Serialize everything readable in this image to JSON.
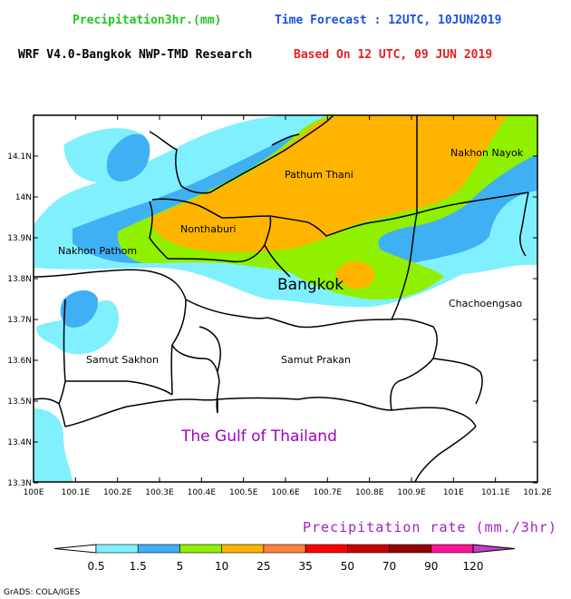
{
  "header": {
    "variable": "Precipitation3hr.(mm)",
    "forecast": "Time Forecast : 12UTC, 10JUN2019",
    "model": "WRF V4.0-Bangkok NWP-TMD Research",
    "based_on": "Based On 12 UTC, 09 JUN 2019"
  },
  "colors": {
    "variable": "#22c722",
    "forecast": "#1a52e6",
    "model": "#000000",
    "based_on": "#e61e1e",
    "legend_title": "#a020c8",
    "gulf_label": "#a000c0"
  },
  "map": {
    "x_ticks": [
      "100E",
      "100.1E",
      "100.2E",
      "100.3E",
      "100.4E",
      "100.5E",
      "100.6E",
      "100.7E",
      "100.8E",
      "100.9E",
      "101E",
      "101.1E",
      "101.2E"
    ],
    "y_ticks": [
      "14.1N",
      "14N",
      "13.9N",
      "13.8N",
      "13.7N",
      "13.6N",
      "13.5N",
      "13.4N",
      "13.3N"
    ],
    "provinces": {
      "pathum_thani": "Pathum Thani",
      "nakhon_nayok": "Nakhon Nayok",
      "nonthaburi": "Nonthaburi",
      "nakhon_pathom": "Nakhon Pathom",
      "bangkok": "Bangkok",
      "chachoengsao": "Chachoengsao",
      "samut_sakhon": "Samut Sakhon",
      "samut_prakan": "Samut Prakan"
    },
    "gulf": "The Gulf of Thailand"
  },
  "legend": {
    "title": "Precipitation rate (mm./3hr)",
    "levels": [
      "0.5",
      "1.5",
      "5",
      "10",
      "25",
      "35",
      "50",
      "70",
      "90",
      "120"
    ],
    "colors": [
      "#ffffff",
      "#80f0ff",
      "#40b0f5",
      "#90f000",
      "#ffb400",
      "#ff8040",
      "#ff0000",
      "#c80000",
      "#960000",
      "#ff1493",
      "#c040c0"
    ]
  },
  "credit": "GrADS: COLA/IGES"
}
